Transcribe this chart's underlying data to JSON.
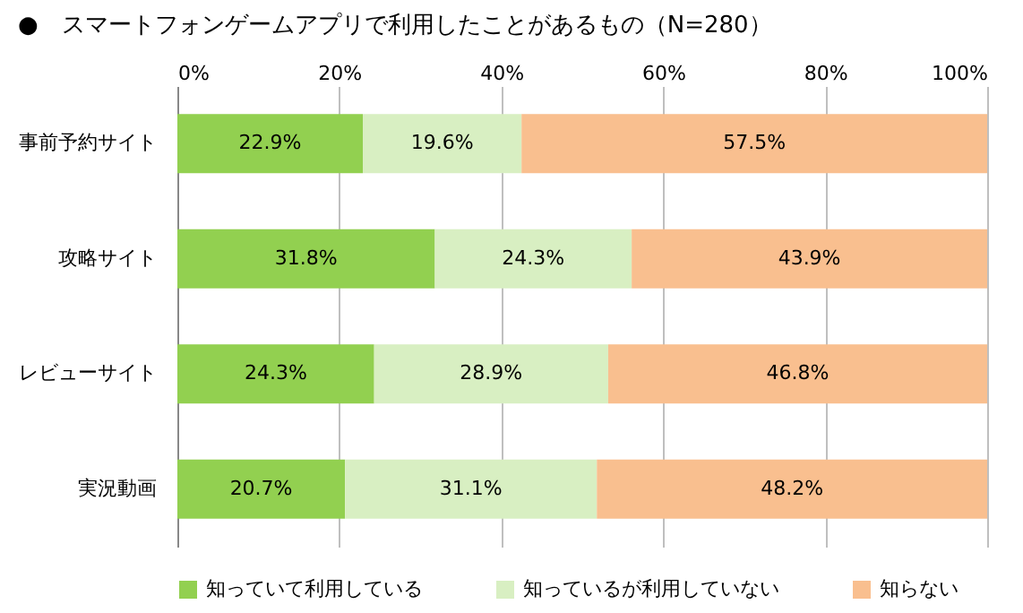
{
  "chart_data": {
    "type": "bar",
    "orientation": "horizontal",
    "stacked": true,
    "title": "●　スマートフォンゲームアプリで利用したことがあるもの（N=280）",
    "categories": [
      "事前予約サイト",
      "攻略サイト",
      "レビューサイト",
      "実況動画"
    ],
    "series": [
      {
        "name": "知っていて利用している",
        "color": "#92d050",
        "values": [
          22.9,
          31.8,
          24.3,
          20.7
        ],
        "value_labels": [
          "22.9%",
          "31.8%",
          "24.3%",
          "20.7%"
        ]
      },
      {
        "name": "知っているが利用していない",
        "color": "#d8efc2",
        "values": [
          19.6,
          24.3,
          28.9,
          31.1
        ],
        "value_labels": [
          "19.6%",
          "24.3%",
          "28.9%",
          "31.1%"
        ]
      },
      {
        "name": "知らない",
        "color": "#f9bf8f",
        "values": [
          57.5,
          43.9,
          46.8,
          48.2
        ],
        "value_labels": [
          "57.5%",
          "43.9%",
          "46.8%",
          "48.2%"
        ]
      }
    ],
    "xlim": [
      0,
      100
    ],
    "xticks": [
      {
        "value": 0,
        "label": "0%"
      },
      {
        "value": 20,
        "label": "20%"
      },
      {
        "value": 40,
        "label": "40%"
      },
      {
        "value": 60,
        "label": "60%"
      },
      {
        "value": 80,
        "label": "80%"
      },
      {
        "value": 100,
        "label": "100%"
      }
    ],
    "grid": "x",
    "legend": "bottom"
  }
}
